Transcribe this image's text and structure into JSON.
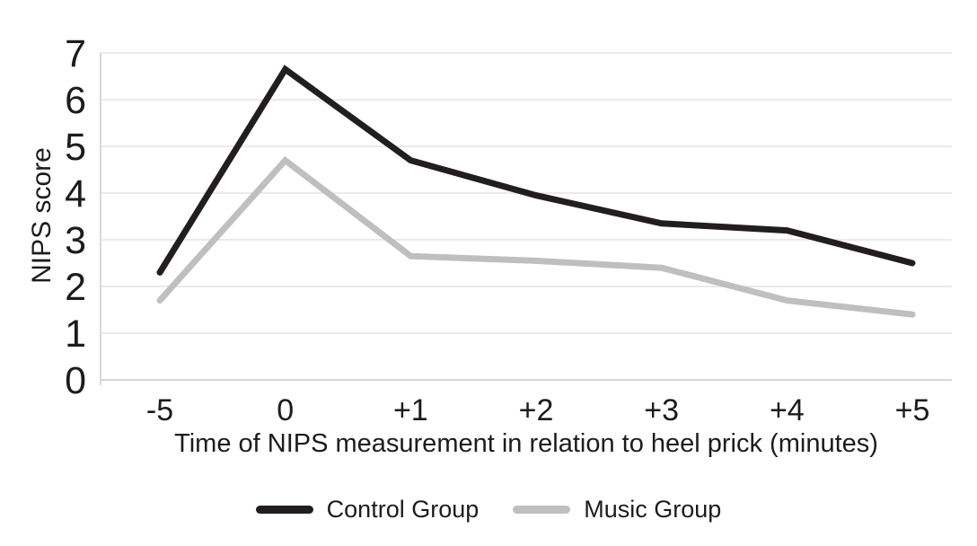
{
  "chart_data": {
    "type": "line",
    "title": "",
    "xlabel": "Time of NIPS measurement in relation to heel prick (minutes)",
    "ylabel": "NIPS score",
    "categories": [
      "-5",
      "0",
      "+1",
      "+2",
      "+3",
      "+4",
      "+5"
    ],
    "y_ticks": [
      0,
      1,
      2,
      3,
      4,
      5,
      6,
      7
    ],
    "ylim": [
      0,
      7
    ],
    "grid": "horizontal",
    "legend_position": "bottom-center",
    "series": [
      {
        "name": "Control Group",
        "color": "#221e1f",
        "values": [
          2.3,
          6.65,
          4.7,
          3.95,
          3.35,
          3.2,
          2.5
        ]
      },
      {
        "name": "Music Group",
        "color": "#bfbfbf",
        "values": [
          1.7,
          4.7,
          2.65,
          2.55,
          2.4,
          1.7,
          1.4
        ]
      }
    ]
  },
  "colors": {
    "background": "#ffffff",
    "gridline": "#e4e4e4",
    "axis_line": "#d8d8d8",
    "text": "#1c1c1c"
  }
}
